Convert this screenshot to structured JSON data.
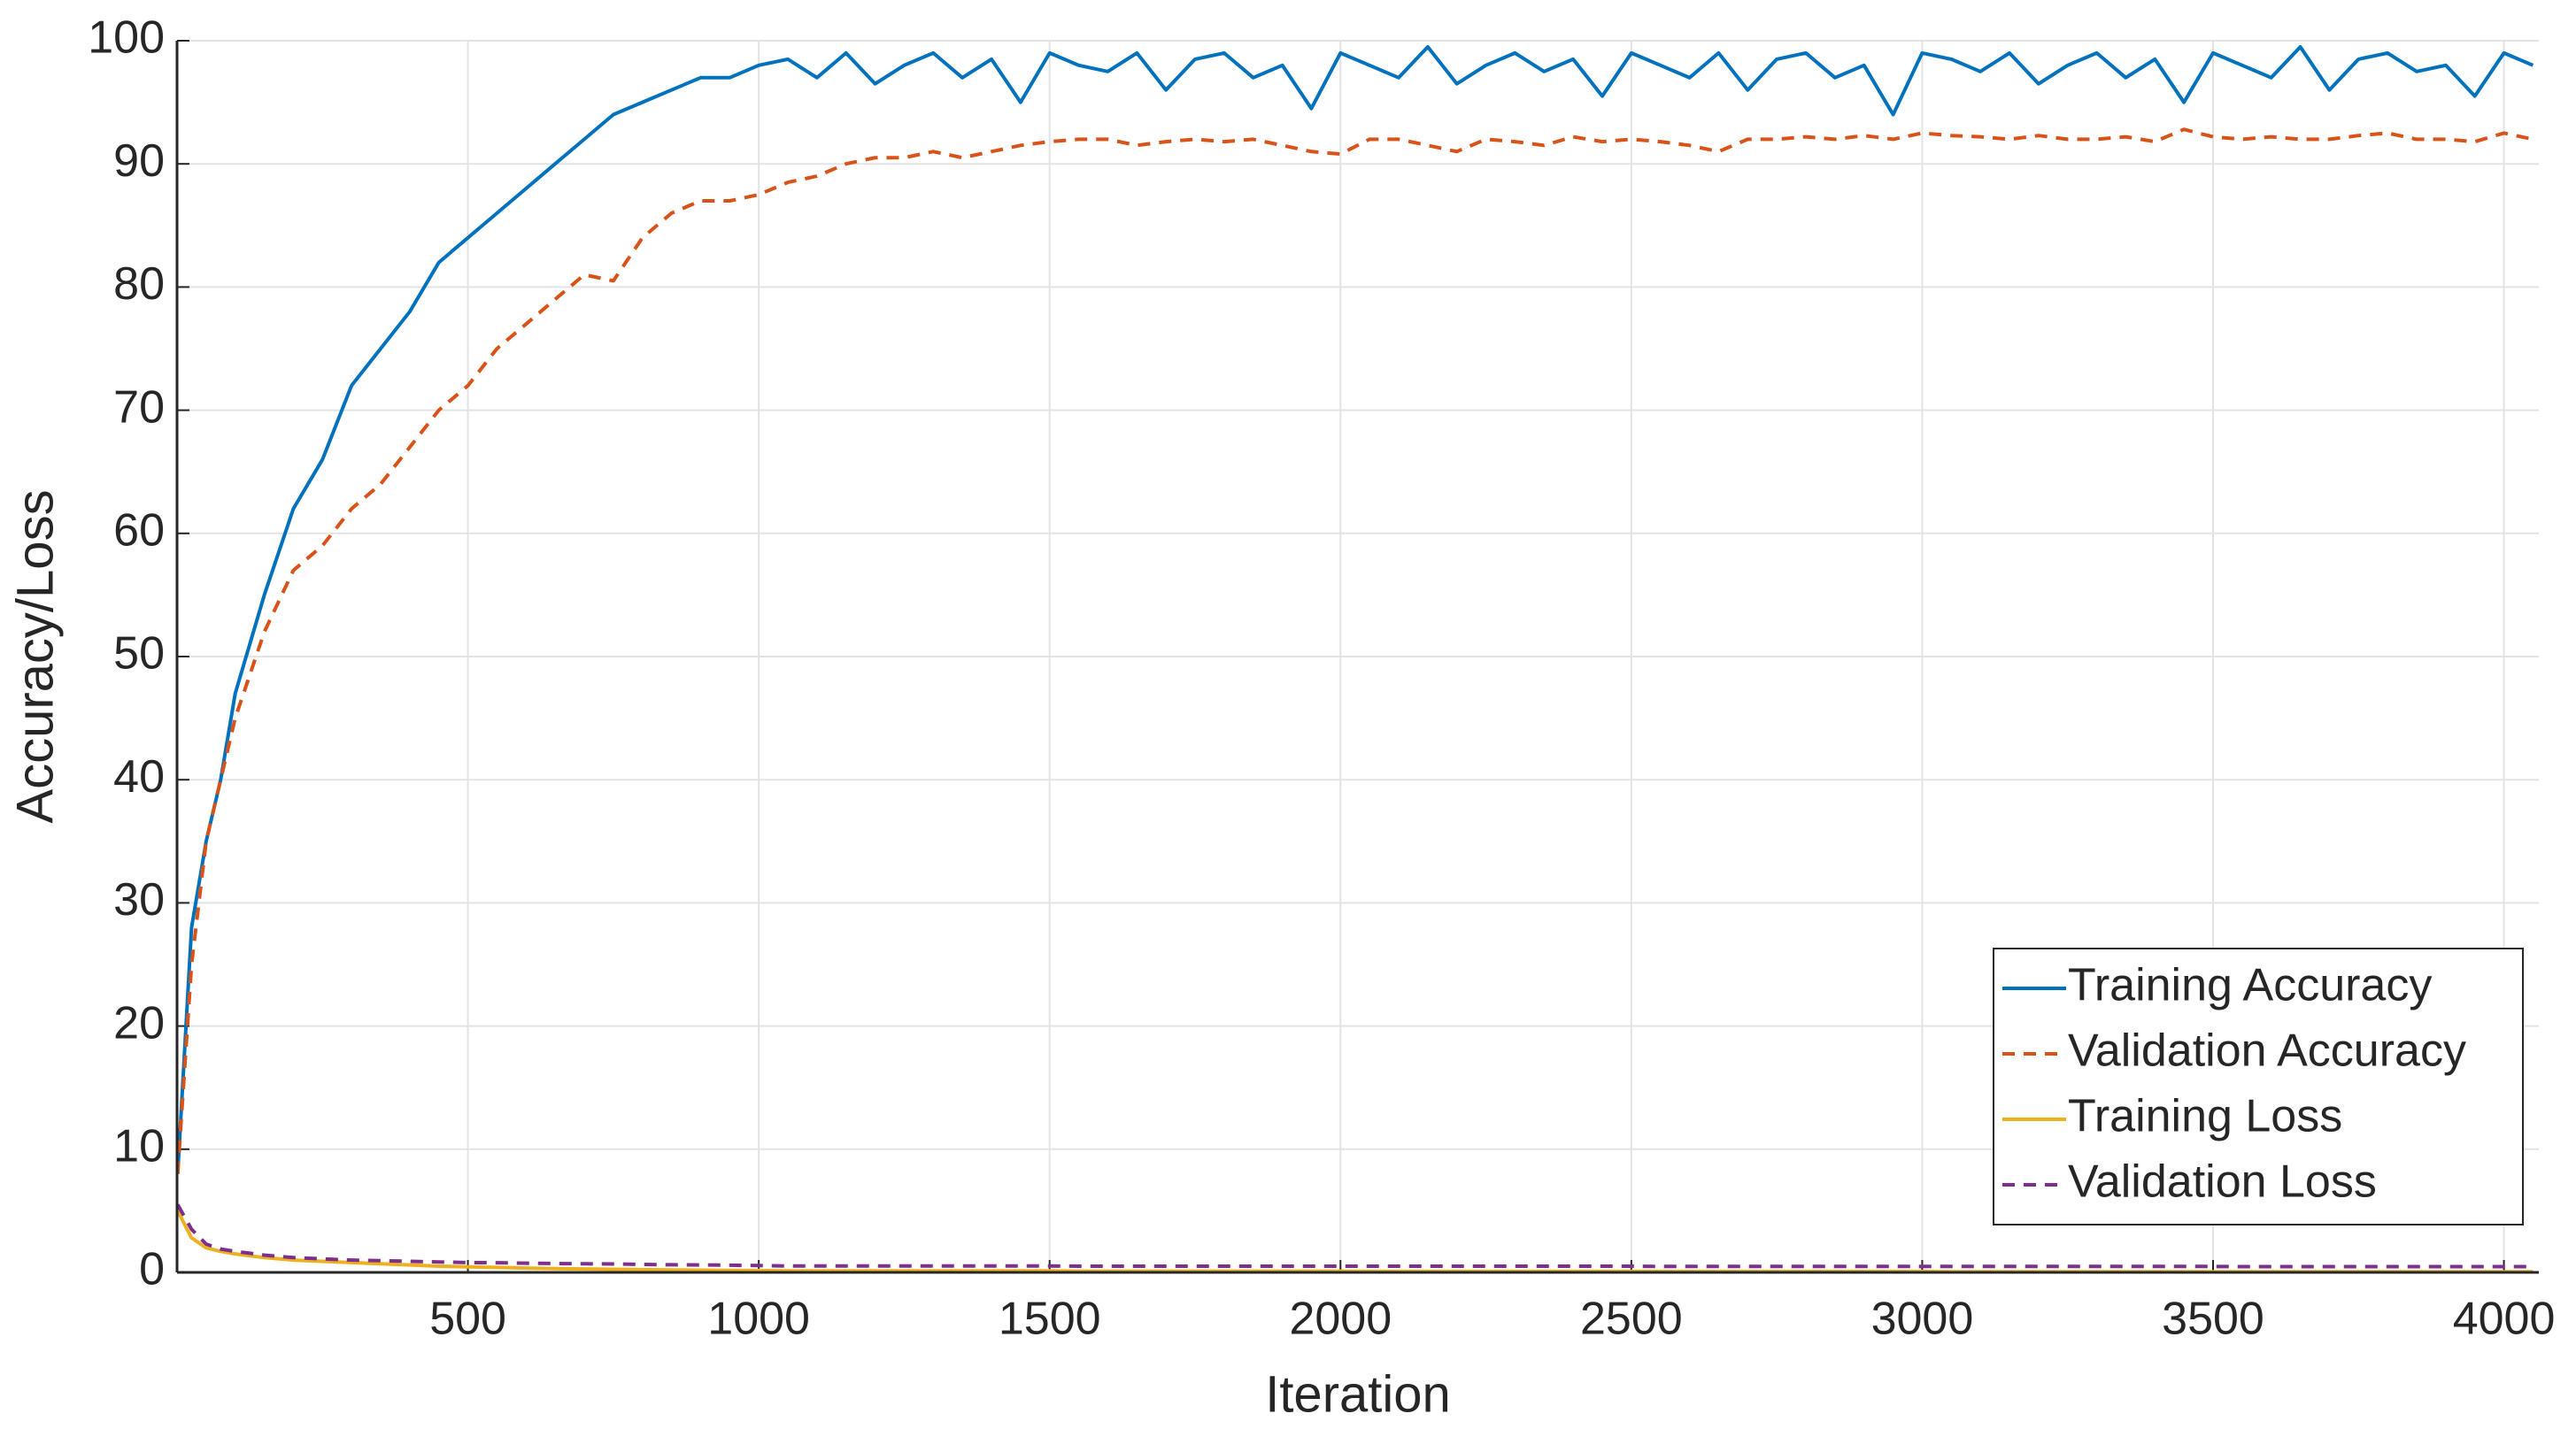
{
  "chart_data": {
    "type": "line",
    "x_label": "Iteration",
    "y_label": "Accuracy/Loss",
    "x": [
      1,
      25,
      50,
      75,
      100,
      150,
      200,
      250,
      300,
      350,
      400,
      450,
      500,
      550,
      600,
      650,
      700,
      750,
      800,
      850,
      900,
      950,
      1000,
      1050,
      1100,
      1150,
      1200,
      1250,
      1300,
      1350,
      1400,
      1450,
      1500,
      1550,
      1600,
      1650,
      1700,
      1750,
      1800,
      1850,
      1900,
      1950,
      2000,
      2050,
      2100,
      2150,
      2200,
      2250,
      2300,
      2350,
      2400,
      2450,
      2500,
      2550,
      2600,
      2650,
      2700,
      2750,
      2800,
      2850,
      2900,
      2950,
      3000,
      3050,
      3100,
      3150,
      3200,
      3250,
      3300,
      3350,
      3400,
      3450,
      3500,
      3550,
      3600,
      3650,
      3700,
      3750,
      3800,
      3850,
      3900,
      3950,
      4000,
      4050
    ],
    "series": [
      {
        "name": "Training Accuracy",
        "color": "#0072BD",
        "dash": false,
        "values": [
          8,
          28,
          35,
          40,
          47,
          55,
          62,
          66,
          72,
          75,
          78,
          82,
          84,
          86,
          88,
          90,
          92,
          94,
          95,
          96,
          97,
          97,
          98,
          98.5,
          97,
          99,
          96.5,
          98,
          99,
          97,
          98.5,
          95,
          99,
          98,
          97.5,
          99,
          96,
          98.5,
          99,
          97,
          98,
          94.5,
          99,
          98,
          97,
          99.5,
          96.5,
          98,
          99,
          97.5,
          98.5,
          95.5,
          99,
          98,
          97,
          99,
          96,
          98.5,
          99,
          97,
          98,
          94,
          99,
          98.5,
          97.5,
          99,
          96.5,
          98,
          99,
          97,
          98.5,
          95,
          99,
          98,
          97,
          99.5,
          96,
          98.5,
          99,
          97.5,
          98,
          95.5,
          99,
          98
        ]
      },
      {
        "name": "Validation Accuracy",
        "color": "#D95319",
        "dash": true,
        "values": [
          8,
          25,
          35,
          40,
          45,
          52,
          57,
          59,
          62,
          64,
          67,
          70,
          72,
          75,
          77,
          79,
          81,
          80.5,
          84,
          86,
          87,
          87,
          87.5,
          88.5,
          89,
          90,
          90.5,
          90.5,
          91,
          90.5,
          91,
          91.5,
          91.8,
          92,
          92,
          91.5,
          91.8,
          92,
          91.8,
          92,
          91.5,
          91,
          90.8,
          92,
          92,
          91.5,
          91,
          92,
          91.8,
          91.5,
          92.2,
          91.8,
          92,
          91.8,
          91.5,
          91,
          92,
          92,
          92.2,
          92,
          92.3,
          92,
          92.5,
          92.3,
          92.2,
          92,
          92.3,
          92,
          92,
          92.2,
          91.8,
          92.8,
          92.2,
          92,
          92.2,
          92,
          92,
          92.3,
          92.5,
          92,
          92,
          91.8,
          92.5,
          92
        ]
      },
      {
        "name": "Training Loss",
        "color": "#EDB120",
        "dash": false,
        "values": [
          5,
          2.8,
          2,
          1.7,
          1.5,
          1.2,
          1,
          0.9,
          0.8,
          0.7,
          0.6,
          0.5,
          0.45,
          0.4,
          0.35,
          0.3,
          0.28,
          0.25,
          0.22,
          0.2,
          0.18,
          0.16,
          0.15,
          0.12,
          0.12,
          0.12,
          0.12,
          0.12,
          0.12,
          0.12,
          0.12,
          0.12,
          0.12,
          0.1,
          0.1,
          0.1,
          0.1,
          0.1,
          0.1,
          0.1,
          0.1,
          0.1,
          0.1,
          0.08,
          0.08,
          0.08,
          0.08,
          0.08,
          0.08,
          0.08,
          0.08,
          0.08,
          0.08,
          0.07,
          0.07,
          0.07,
          0.07,
          0.07,
          0.07,
          0.07,
          0.07,
          0.07,
          0.07,
          0.06,
          0.06,
          0.06,
          0.06,
          0.06,
          0.06,
          0.06,
          0.06,
          0.06,
          0.06,
          0.05,
          0.05,
          0.05,
          0.05,
          0.05,
          0.05,
          0.05,
          0.05,
          0.05,
          0.05,
          0.05
        ]
      },
      {
        "name": "Validation Loss",
        "color": "#7E2F8E",
        "dash": true,
        "values": [
          5.5,
          3.5,
          2.3,
          1.9,
          1.7,
          1.4,
          1.2,
          1.1,
          1,
          0.95,
          0.9,
          0.85,
          0.8,
          0.78,
          0.75,
          0.72,
          0.7,
          0.68,
          0.65,
          0.62,
          0.6,
          0.58,
          0.55,
          0.52,
          0.52,
          0.52,
          0.52,
          0.52,
          0.52,
          0.52,
          0.52,
          0.52,
          0.52,
          0.5,
          0.5,
          0.5,
          0.5,
          0.5,
          0.5,
          0.5,
          0.5,
          0.5,
          0.5,
          0.5,
          0.5,
          0.5,
          0.5,
          0.5,
          0.5,
          0.5,
          0.5,
          0.5,
          0.5,
          0.48,
          0.48,
          0.48,
          0.48,
          0.48,
          0.48,
          0.48,
          0.48,
          0.48,
          0.48,
          0.48,
          0.48,
          0.48,
          0.48,
          0.48,
          0.48,
          0.48,
          0.48,
          0.48,
          0.48,
          0.47,
          0.47,
          0.47,
          0.47,
          0.47,
          0.47,
          0.47,
          0.47,
          0.47,
          0.47,
          0.47
        ]
      }
    ],
    "xlim": [
      0,
      4060
    ],
    "xticks": [
      500,
      1000,
      1500,
      2000,
      2500,
      3000,
      3500,
      4000
    ],
    "ylim": [
      0,
      100
    ],
    "yticks": [
      0,
      10,
      20,
      30,
      40,
      50,
      60,
      70,
      80,
      90,
      100
    ],
    "grid": true,
    "legend": "southeast"
  }
}
